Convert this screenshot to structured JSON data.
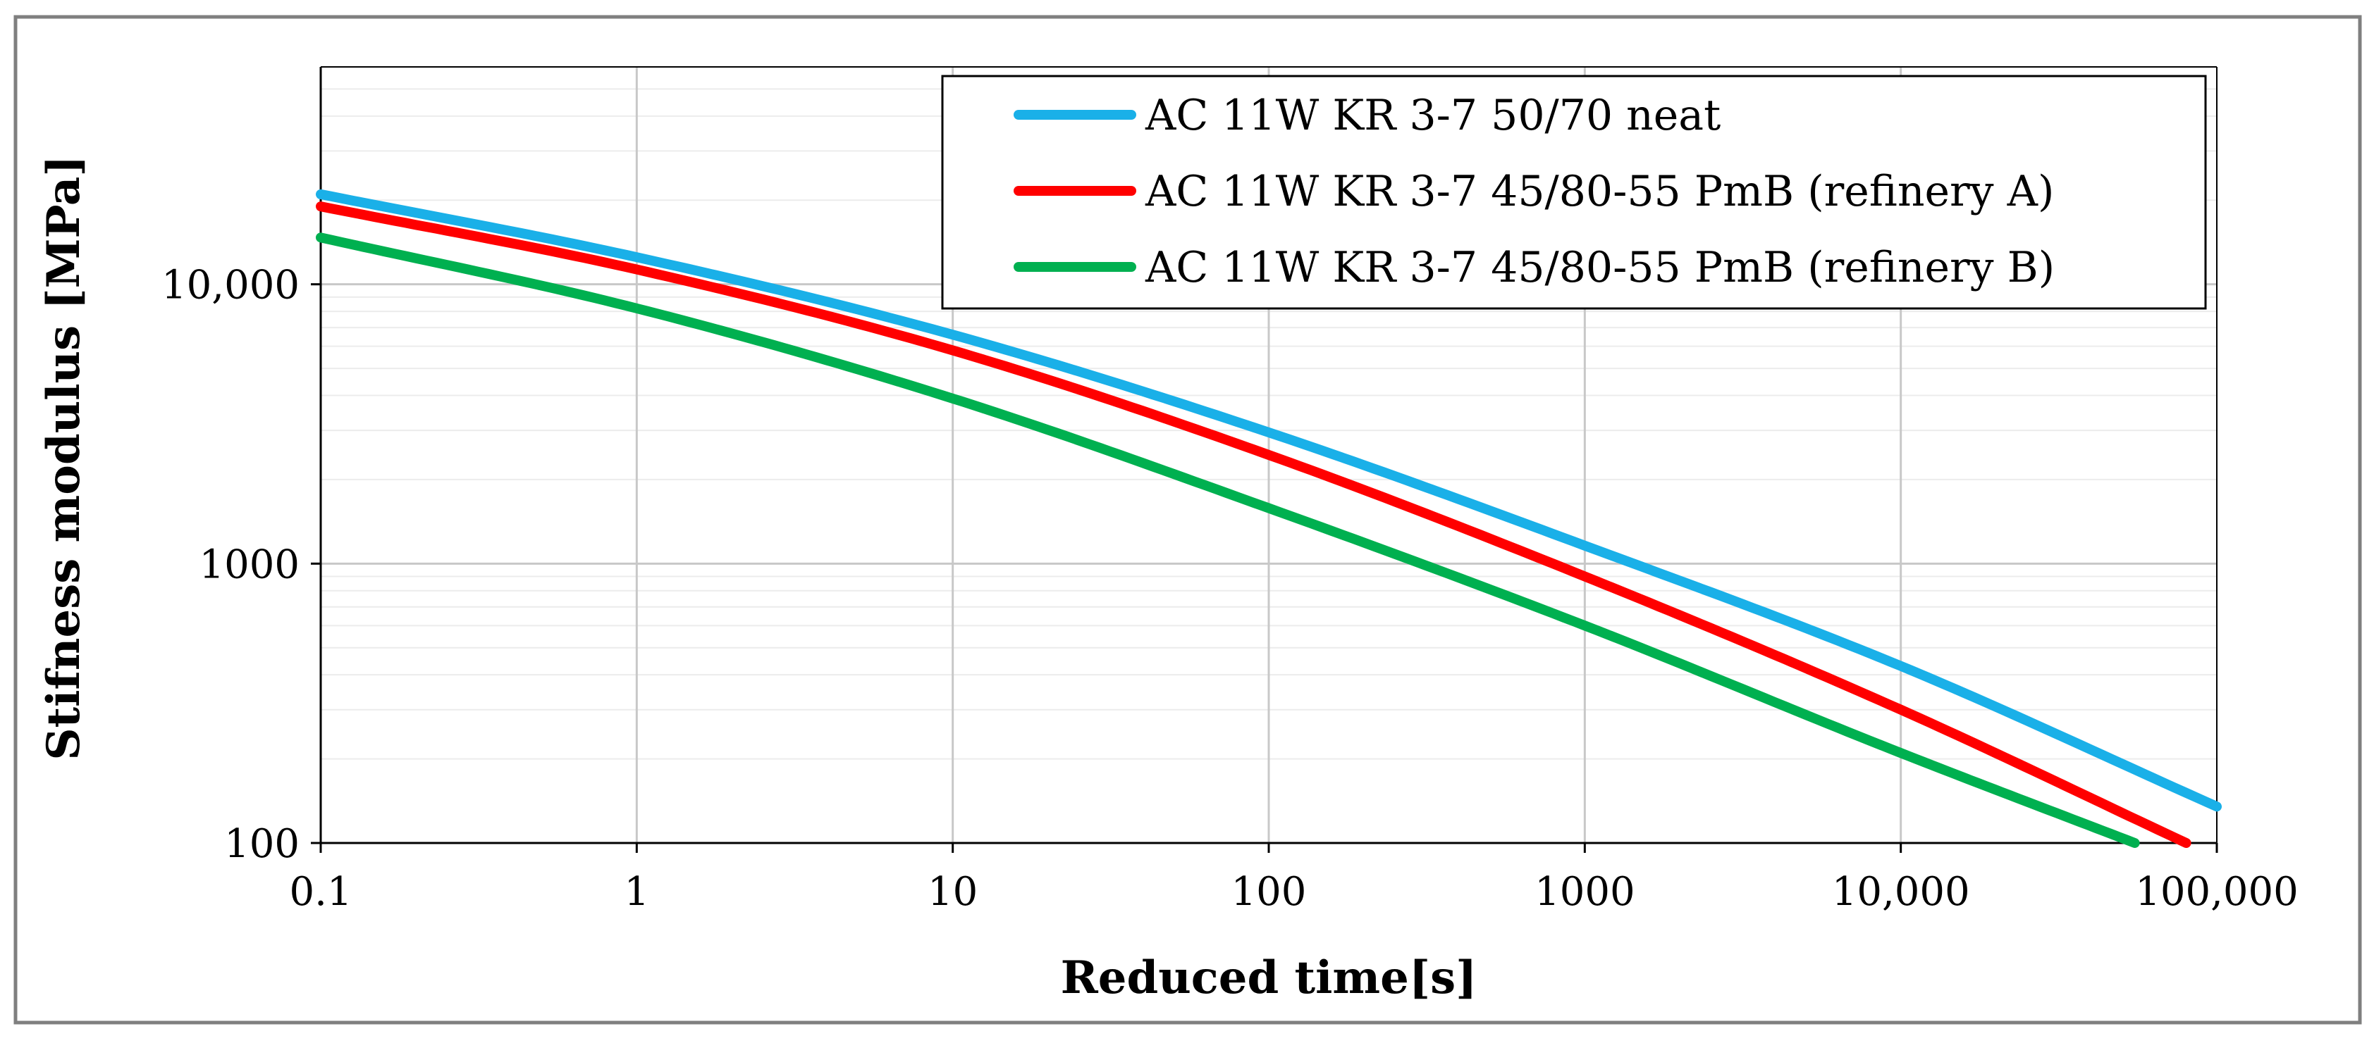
{
  "chart_data": {
    "type": "line",
    "title": "",
    "xlabel": "Reduced time[s]",
    "ylabel": "Stifness modulus [MPa]",
    "xscale": "log",
    "yscale": "log",
    "xlim": [
      0.1,
      100000
    ],
    "ylim": [
      100,
      60000
    ],
    "x_ticks": [
      {
        "value": 0.1,
        "label": "0.1"
      },
      {
        "value": 1,
        "label": "1"
      },
      {
        "value": 10,
        "label": "10"
      },
      {
        "value": 100,
        "label": "100"
      },
      {
        "value": 1000,
        "label": "1000"
      },
      {
        "value": 10000,
        "label": "10,000"
      },
      {
        "value": 100000,
        "label": "100,000"
      }
    ],
    "y_ticks": [
      {
        "value": 100,
        "label": "100"
      },
      {
        "value": 1000,
        "label": "1000"
      },
      {
        "value": 10000,
        "label": "10,000"
      }
    ],
    "grid": true,
    "legend_position": "top-right",
    "series": [
      {
        "name": "AC 11W KR 3-7 50/70 neat",
        "color": "#1ab0e8",
        "x": [
          0.1,
          1,
          10,
          100,
          1000,
          10000,
          100000
        ],
        "values": [
          21000,
          12500,
          6600,
          2950,
          1160,
          430,
          135
        ]
      },
      {
        "name": "AC 11W KR 3-7 45/80-55 PmB (refinery A)",
        "color": "#ff0000",
        "x": [
          0.1,
          1,
          10,
          100,
          1000,
          10000,
          80000
        ],
        "values": [
          19000,
          11300,
          5800,
          2450,
          900,
          300,
          100
        ]
      },
      {
        "name": "AC 11W KR 3-7 45/80-55 PmB (refinery B)",
        "color": "#00b050",
        "x": [
          0.1,
          1,
          10,
          100,
          1000,
          10000,
          55000
        ],
        "values": [
          14700,
          8200,
          3900,
          1580,
          600,
          210,
          100
        ]
      }
    ]
  }
}
